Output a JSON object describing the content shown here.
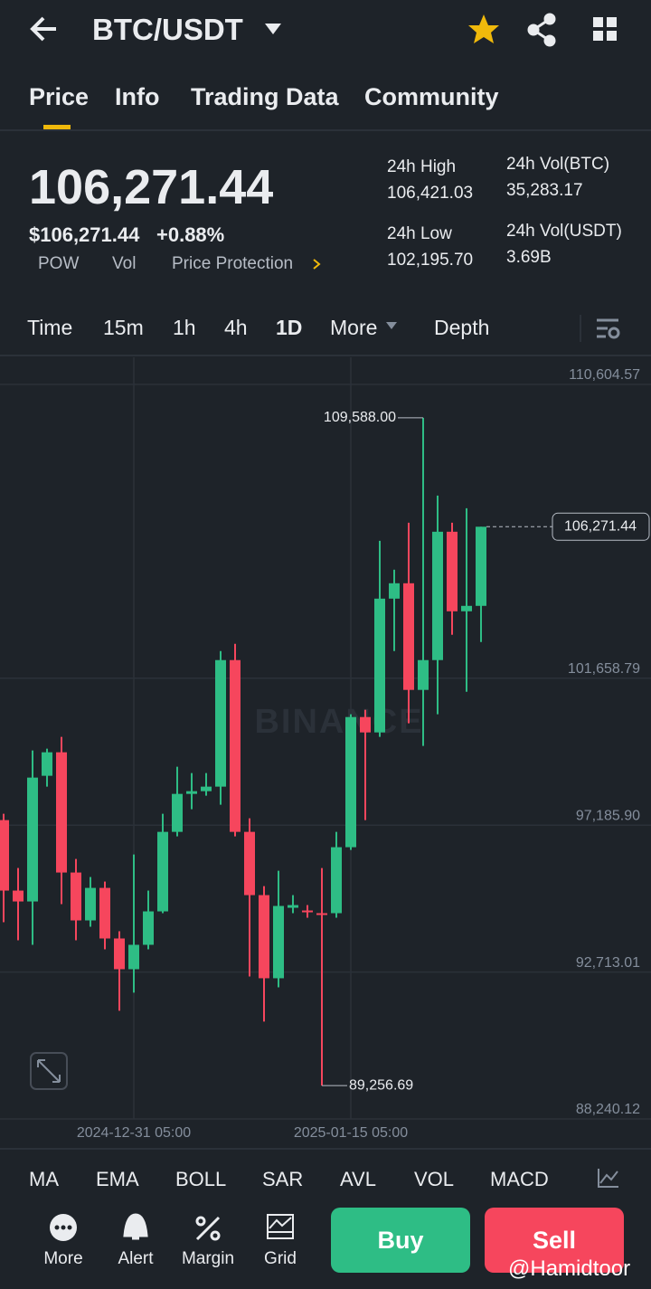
{
  "header": {
    "pair": "BTC/USDT"
  },
  "tabs": [
    "Price",
    "Info",
    "Trading Data",
    "Community"
  ],
  "price": {
    "last": "106,271.44",
    "fiat": "$106,271.44",
    "change": "+0.88%",
    "tags": [
      "POW",
      "Vol",
      "Price Protection"
    ]
  },
  "stats": [
    {
      "label": "24h High",
      "value": "106,421.03"
    },
    {
      "label": "24h Vol(BTC)",
      "value": "35,283.17"
    },
    {
      "label": "24h Low",
      "value": "102,195.70"
    },
    {
      "label": "24h Vol(USDT)",
      "value": "3.69B"
    }
  ],
  "intervals": [
    "Time",
    "15m",
    "1h",
    "4h",
    "1D",
    "More",
    "Depth"
  ],
  "chart_data": {
    "type": "candlestick",
    "watermark": "BINANCE",
    "categories": [
      null,
      null,
      null,
      null,
      null,
      null,
      null,
      null,
      null,
      "2024-12-31 05:00",
      null,
      null,
      null,
      null,
      null,
      null,
      null,
      null,
      null,
      null,
      null,
      null,
      null,
      null,
      "2025-01-15 05:00",
      null,
      null,
      null,
      null,
      null,
      null,
      null,
      null,
      null
    ],
    "open": [
      97339,
      95193,
      94862,
      98688,
      99404,
      95743,
      94285,
      95275,
      93735,
      92799,
      93542,
      94560,
      96981,
      98137,
      98220,
      98358,
      102211,
      96981,
      95055,
      92524,
      94670,
      94587,
      94505,
      94505,
      96514,
      100477,
      100009,
      104082,
      104550,
      101303,
      102211,
      106119,
      103697,
      103862
    ],
    "high": [
      97532,
      95881,
      99459,
      99514,
      99872,
      96156,
      95606,
      95468,
      93955,
      96294,
      95193,
      97532,
      98964,
      98771,
      98771,
      102486,
      102706,
      97394,
      95330,
      95798,
      95055,
      94752,
      95881,
      96981,
      100560,
      100697,
      105844,
      104963,
      106394,
      109588,
      107220,
      106394,
      106835,
      106271.44
    ],
    "low": [
      94230,
      93680,
      93542,
      98358,
      94780,
      93680,
      94092,
      93405,
      91534,
      92084,
      93405,
      94505,
      96844,
      97670,
      98082,
      97807,
      96844,
      92579,
      91203,
      92249,
      94505,
      94367,
      89256.69,
      94367,
      96431,
      97339,
      99872,
      102486,
      100285,
      99597,
      100560,
      102982,
      101248,
      102761
    ],
    "close": [
      95193,
      94862,
      98633,
      99404,
      95743,
      94285,
      95275,
      93735,
      92799,
      93542,
      94560,
      96981,
      98137,
      98220,
      98358,
      102211,
      96981,
      95055,
      92524,
      94725,
      94752,
      94532,
      94450,
      96514,
      100477,
      100009,
      104082,
      104550,
      101303,
      102211,
      106119,
      103697,
      103862,
      106271.44
    ],
    "up_color": "#2ebd85",
    "down_color": "#f6465d",
    "ylim": [
      88240.12,
      111430
    ],
    "yticks": [
      {
        "value": 88240.12,
        "label": "88,240.12"
      },
      {
        "value": 92713.01,
        "label": "92,713.01"
      },
      {
        "value": 97185.9,
        "label": "97,185.90"
      },
      {
        "value": 101658.79,
        "label": "101,658.79"
      },
      {
        "value": 110604.57,
        "label": "110,604.57"
      }
    ],
    "high_label": {
      "value": 109588,
      "label": "109,588.00"
    },
    "low_label": {
      "value": 89256.69,
      "label": "89,256.69"
    },
    "last_label": {
      "value": 106271.44,
      "label": "106,271.44"
    },
    "grid": true
  },
  "indicators": [
    "MA",
    "EMA",
    "BOLL",
    "SAR",
    "AVL",
    "VOL",
    "MACD"
  ],
  "actions": [
    "More",
    "Alert",
    "Margin",
    "Grid"
  ],
  "buttons": {
    "buy": "Buy",
    "sell": "Sell"
  },
  "watermark": "@Hamidtoor"
}
